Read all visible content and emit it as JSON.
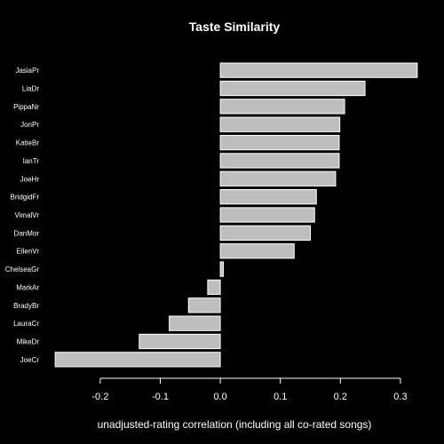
{
  "chart_data": {
    "type": "bar",
    "orientation": "horizontal",
    "title": "Taste Similarity",
    "xlabel": "unadjusted-rating correlation (including all co-rated songs)",
    "ylabel": "",
    "categories": [
      "JasiaPr",
      "LiaDr",
      "PippaNr",
      "JonPr",
      "KatieBr",
      "IanTr",
      "JoeHr",
      "BridgidFr",
      "VimalVr",
      "DanMor",
      "EllenVr",
      "ChelseaGr",
      "MarkAr",
      "BradyBr",
      "LauraCr",
      "MikeDr",
      "JoeCr"
    ],
    "values": [
      0.328,
      0.241,
      0.207,
      0.199,
      0.198,
      0.198,
      0.192,
      0.16,
      0.157,
      0.15,
      0.123,
      0.005,
      -0.021,
      -0.053,
      -0.085,
      -0.135,
      -0.275
    ],
    "xticks": [
      -0.2,
      -0.1,
      0.0,
      0.1,
      0.2,
      0.3
    ],
    "xtick_labels": [
      "-0.2",
      "-0.1",
      "0.0",
      "0.1",
      "0.2",
      "0.3"
    ],
    "xlim": [
      -0.29,
      0.34
    ],
    "bar_color": "#bebebe",
    "background": "#000000",
    "grid": false,
    "legend": "none"
  }
}
